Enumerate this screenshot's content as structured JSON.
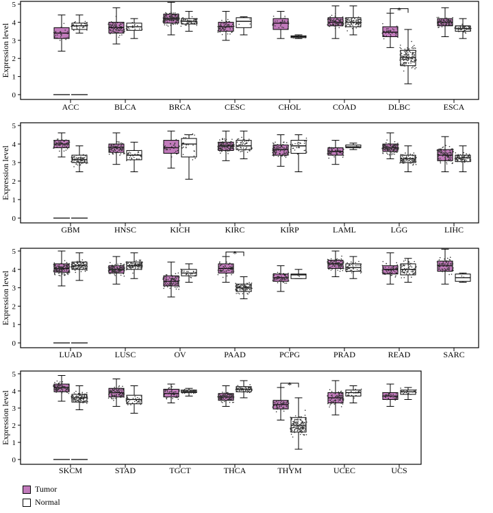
{
  "chart_data": {
    "type": "boxplot",
    "ylabel": "Expression level",
    "ylim": [
      0,
      5
    ],
    "yticks": [
      0,
      1,
      2,
      3,
      4,
      5
    ],
    "significance_marker": "*",
    "legend": [
      {
        "name": "Tumor",
        "color": "#c27bbc"
      },
      {
        "name": "Normal",
        "color": "#ffffff"
      }
    ],
    "panels": [
      {
        "cancers": [
          {
            "name": "ACC",
            "tumor": {
              "min": 2.4,
              "q1": 3.1,
              "median": 3.4,
              "q3": 3.7,
              "max": 4.4,
              "n": 30
            },
            "normal": {
              "min": 3.4,
              "q1": 3.6,
              "median": 3.8,
              "q3": 3.95,
              "max": 4.4,
              "n": 30
            },
            "sig": false,
            "zero": true
          },
          {
            "name": "BLCA",
            "tumor": {
              "min": 2.8,
              "q1": 3.4,
              "median": 3.7,
              "q3": 4.0,
              "max": 4.8,
              "n": 90
            },
            "normal": {
              "min": 3.1,
              "q1": 3.55,
              "median": 3.75,
              "q3": 3.95,
              "max": 4.2,
              "n": 20
            },
            "sig": false,
            "zero": false
          },
          {
            "name": "BRCA",
            "tumor": {
              "min": 3.3,
              "q1": 3.95,
              "median": 4.2,
              "q3": 4.45,
              "max": 5.1,
              "n": 150
            },
            "normal": {
              "min": 3.5,
              "q1": 3.9,
              "median": 4.05,
              "q3": 4.2,
              "max": 4.6,
              "n": 70
            },
            "sig": false,
            "zero": false
          },
          {
            "name": "CESC",
            "tumor": {
              "min": 3.0,
              "q1": 3.5,
              "median": 3.75,
              "q3": 4.0,
              "max": 4.6,
              "n": 80
            },
            "normal": {
              "min": 3.3,
              "q1": 3.7,
              "median": 4.05,
              "q3": 4.25,
              "max": 4.3,
              "n": 3
            },
            "sig": false,
            "zero": false
          },
          {
            "name": "CHOL",
            "tumor": {
              "min": 3.1,
              "q1": 3.6,
              "median": 3.95,
              "q3": 4.2,
              "max": 4.6,
              "n": 30
            },
            "normal": {
              "min": 3.1,
              "q1": 3.15,
              "median": 3.2,
              "q3": 3.25,
              "max": 3.3,
              "n": 9
            },
            "sig": false,
            "zero": false
          },
          {
            "name": "COAD",
            "tumor": {
              "min": 3.1,
              "q1": 3.8,
              "median": 4.0,
              "q3": 4.25,
              "max": 4.9,
              "n": 90
            },
            "normal": {
              "min": 3.3,
              "q1": 3.75,
              "median": 4.0,
              "q3": 4.25,
              "max": 4.9,
              "n": 90
            },
            "sig": false,
            "zero": false
          },
          {
            "name": "DLBC",
            "tumor": {
              "min": 2.6,
              "q1": 3.2,
              "median": 3.45,
              "q3": 3.75,
              "max": 4.5,
              "n": 40
            },
            "normal": {
              "min": 0.6,
              "q1": 1.6,
              "median": 2.05,
              "q3": 2.45,
              "max": 3.6,
              "n": 150
            },
            "sig": true,
            "zero": false
          },
          {
            "name": "ESCA",
            "tumor": {
              "min": 3.2,
              "q1": 3.8,
              "median": 4.0,
              "q3": 4.2,
              "max": 4.8,
              "n": 90
            },
            "normal": {
              "min": 3.1,
              "q1": 3.5,
              "median": 3.65,
              "q3": 3.8,
              "max": 4.2,
              "n": 70
            },
            "sig": false,
            "zero": false
          }
        ]
      },
      {
        "cancers": [
          {
            "name": "GBM",
            "tumor": {
              "min": 3.3,
              "q1": 3.8,
              "median": 4.0,
              "q3": 4.2,
              "max": 4.6,
              "n": 70
            },
            "normal": {
              "min": 2.5,
              "q1": 3.0,
              "median": 3.15,
              "q3": 3.4,
              "max": 3.9,
              "n": 90
            },
            "sig": false,
            "zero": true
          },
          {
            "name": "HNSC",
            "tumor": {
              "min": 2.9,
              "q1": 3.55,
              "median": 3.8,
              "q3": 4.0,
              "max": 4.6,
              "n": 110
            },
            "normal": {
              "min": 2.5,
              "q1": 3.15,
              "median": 3.4,
              "q3": 3.65,
              "max": 4.1,
              "n": 30
            },
            "sig": false,
            "zero": false
          },
          {
            "name": "KICH",
            "tumor": {
              "min": 2.7,
              "q1": 3.5,
              "median": 3.8,
              "q3": 4.2,
              "max": 4.7,
              "n": 40
            },
            "normal": {
              "min": 2.1,
              "q1": 3.3,
              "median": 4.0,
              "q3": 4.3,
              "max": 4.5,
              "n": 25
            },
            "sig": false,
            "zero": false
          },
          {
            "name": "KIRC",
            "tumor": {
              "min": 3.1,
              "q1": 3.65,
              "median": 3.9,
              "q3": 4.1,
              "max": 4.7,
              "n": 150
            },
            "normal": {
              "min": 3.2,
              "q1": 3.7,
              "median": 3.9,
              "q3": 4.2,
              "max": 4.7,
              "n": 50
            },
            "sig": false,
            "zero": false
          },
          {
            "name": "KIRP",
            "tumor": {
              "min": 2.8,
              "q1": 3.4,
              "median": 3.7,
              "q3": 3.95,
              "max": 4.5,
              "n": 110
            },
            "normal": {
              "min": 2.5,
              "q1": 3.5,
              "median": 3.9,
              "q3": 4.2,
              "max": 4.5,
              "n": 30
            },
            "sig": false,
            "zero": false
          },
          {
            "name": "LAML",
            "tumor": {
              "min": 2.9,
              "q1": 3.4,
              "median": 3.6,
              "q3": 3.8,
              "max": 4.2,
              "n": 60
            },
            "normal": {
              "min": 3.7,
              "q1": 3.8,
              "median": 3.85,
              "q3": 3.95,
              "max": 4.05,
              "n": 12
            },
            "sig": false,
            "zero": false
          },
          {
            "name": "LGG",
            "tumor": {
              "min": 3.2,
              "q1": 3.6,
              "median": 3.8,
              "q3": 4.0,
              "max": 4.6,
              "n": 150
            },
            "normal": {
              "min": 2.5,
              "q1": 3.0,
              "median": 3.2,
              "q3": 3.4,
              "max": 3.9,
              "n": 90
            },
            "sig": false,
            "zero": false
          },
          {
            "name": "LIHC",
            "tumor": {
              "min": 2.5,
              "q1": 3.1,
              "median": 3.4,
              "q3": 3.7,
              "max": 4.4,
              "n": 110
            },
            "normal": {
              "min": 2.5,
              "q1": 3.05,
              "median": 3.25,
              "q3": 3.4,
              "max": 3.9,
              "n": 90
            },
            "sig": false,
            "zero": false
          }
        ]
      },
      {
        "cancers": [
          {
            "name": "LUAD",
            "tumor": {
              "min": 3.1,
              "q1": 3.85,
              "median": 4.05,
              "q3": 4.3,
              "max": 5.0,
              "n": 150
            },
            "normal": {
              "min": 3.4,
              "q1": 4.0,
              "median": 4.2,
              "q3": 4.4,
              "max": 4.9,
              "n": 110
            },
            "sig": false,
            "zero": true
          },
          {
            "name": "LUSC",
            "tumor": {
              "min": 3.2,
              "q1": 3.8,
              "median": 4.0,
              "q3": 4.2,
              "max": 4.7,
              "n": 150
            },
            "normal": {
              "min": 3.5,
              "q1": 4.0,
              "median": 4.2,
              "q3": 4.4,
              "max": 4.9,
              "n": 110
            },
            "sig": false,
            "zero": false
          },
          {
            "name": "OV",
            "tumor": {
              "min": 2.5,
              "q1": 3.1,
              "median": 3.35,
              "q3": 3.65,
              "max": 4.4,
              "n": 110
            },
            "normal": {
              "min": 3.3,
              "q1": 3.65,
              "median": 3.8,
              "q3": 4.0,
              "max": 4.3,
              "n": 25
            },
            "sig": false,
            "zero": false
          },
          {
            "name": "PAAD",
            "tumor": {
              "min": 3.3,
              "q1": 3.8,
              "median": 4.05,
              "q3": 4.3,
              "max": 4.7,
              "n": 60
            },
            "normal": {
              "min": 2.4,
              "q1": 2.8,
              "median": 3.0,
              "q3": 3.2,
              "max": 3.6,
              "n": 110
            },
            "sig": true,
            "zero": false
          },
          {
            "name": "PCPG",
            "tumor": {
              "min": 2.8,
              "q1": 3.35,
              "median": 3.55,
              "q3": 3.75,
              "max": 4.2,
              "n": 70
            },
            "normal": {
              "min": 3.5,
              "q1": 3.5,
              "median": 3.7,
              "q3": 3.75,
              "max": 4.0,
              "n": 3
            },
            "sig": false,
            "zero": false
          },
          {
            "name": "PRAD",
            "tumor": {
              "min": 3.6,
              "q1": 4.05,
              "median": 4.3,
              "q3": 4.5,
              "max": 5.0,
              "n": 110
            },
            "normal": {
              "min": 3.5,
              "q1": 3.9,
              "median": 4.1,
              "q3": 4.3,
              "max": 4.7,
              "n": 50
            },
            "sig": false,
            "zero": false
          },
          {
            "name": "READ",
            "tumor": {
              "min": 3.2,
              "q1": 3.75,
              "median": 4.0,
              "q3": 4.2,
              "max": 4.9,
              "n": 60
            },
            "normal": {
              "min": 3.3,
              "q1": 3.7,
              "median": 4.0,
              "q3": 4.3,
              "max": 4.6,
              "n": 70
            },
            "sig": false,
            "zero": false
          },
          {
            "name": "SARC",
            "tumor": {
              "min": 3.2,
              "q1": 3.9,
              "median": 4.2,
              "q3": 4.45,
              "max": 5.1,
              "n": 90
            },
            "normal": {
              "min": 3.3,
              "q1": 3.35,
              "median": 3.55,
              "q3": 3.75,
              "max": 3.8,
              "n": 2
            },
            "sig": false,
            "zero": false
          }
        ]
      },
      {
        "cancers": [
          {
            "name": "SKCM",
            "tumor": {
              "min": 3.4,
              "q1": 3.95,
              "median": 4.2,
              "q3": 4.4,
              "max": 4.9,
              "n": 110
            },
            "normal": {
              "min": 2.9,
              "q1": 3.35,
              "median": 3.6,
              "q3": 3.8,
              "max": 4.3,
              "n": 110
            },
            "sig": false,
            "zero": true
          },
          {
            "name": "STAD",
            "tumor": {
              "min": 3.1,
              "q1": 3.65,
              "median": 3.9,
              "q3": 4.15,
              "max": 4.7,
              "n": 110
            },
            "normal": {
              "min": 2.7,
              "q1": 3.25,
              "median": 3.5,
              "q3": 3.75,
              "max": 4.3,
              "n": 40
            },
            "sig": false,
            "zero": false
          },
          {
            "name": "TGCT",
            "tumor": {
              "min": 3.3,
              "q1": 3.65,
              "median": 3.85,
              "q3": 4.1,
              "max": 4.4,
              "n": 60
            },
            "normal": {
              "min": 3.7,
              "q1": 3.9,
              "median": 3.95,
              "q3": 4.05,
              "max": 4.15,
              "n": 90
            },
            "sig": false,
            "zero": false
          },
          {
            "name": "THCA",
            "tumor": {
              "min": 3.1,
              "q1": 3.45,
              "median": 3.65,
              "q3": 3.85,
              "max": 4.3,
              "n": 110
            },
            "normal": {
              "min": 3.6,
              "q1": 3.95,
              "median": 4.1,
              "q3": 4.25,
              "max": 4.6,
              "n": 70
            },
            "sig": false,
            "zero": false
          },
          {
            "name": "THYM",
            "tumor": {
              "min": 2.3,
              "q1": 2.95,
              "median": 3.2,
              "q3": 3.45,
              "max": 4.2,
              "n": 60
            },
            "normal": {
              "min": 0.6,
              "q1": 1.6,
              "median": 2.0,
              "q3": 2.45,
              "max": 3.6,
              "n": 150
            },
            "sig": true,
            "zero": false
          },
          {
            "name": "UCEC",
            "tumor": {
              "min": 2.6,
              "q1": 3.3,
              "median": 3.6,
              "q3": 3.9,
              "max": 4.6,
              "n": 90
            },
            "normal": {
              "min": 3.3,
              "q1": 3.7,
              "median": 3.9,
              "q3": 4.05,
              "max": 4.3,
              "n": 25
            },
            "sig": false,
            "zero": false
          },
          {
            "name": "UCS",
            "tumor": {
              "min": 3.1,
              "q1": 3.5,
              "median": 3.7,
              "q3": 3.9,
              "max": 4.4,
              "n": 40
            },
            "normal": {
              "min": 3.5,
              "q1": 3.8,
              "median": 3.95,
              "q3": 4.05,
              "max": 4.2,
              "n": 20
            },
            "sig": false,
            "zero": false
          }
        ]
      }
    ]
  }
}
